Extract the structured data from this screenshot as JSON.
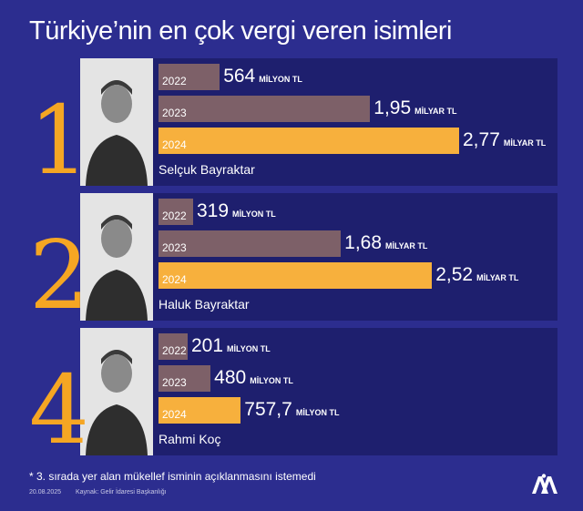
{
  "title": "Türkiye’nin en çok vergi veren isimleri",
  "chart_data": {
    "type": "bar",
    "categories": [
      "2022",
      "2023",
      "2024"
    ],
    "persons": [
      {
        "rank": "1",
        "name": "Selçuk Bayraktar",
        "photo_icon": "portrait-selcuk-bayraktar",
        "values_million_tl": [
          564,
          1950,
          2770
        ],
        "labels": [
          {
            "num": "564",
            "unit": "MİLYON TL"
          },
          {
            "num": "1,95",
            "unit": "MİLYAR TL"
          },
          {
            "num": "2,77",
            "unit": "MİLYAR TL"
          }
        ]
      },
      {
        "rank": "2",
        "name": "Haluk Bayraktar",
        "photo_icon": "portrait-haluk-bayraktar",
        "values_million_tl": [
          319,
          1680,
          2520
        ],
        "labels": [
          {
            "num": "319",
            "unit": "MİLYON TL"
          },
          {
            "num": "1,68",
            "unit": "MİLYAR TL"
          },
          {
            "num": "2,52",
            "unit": "MİLYAR TL"
          }
        ]
      },
      {
        "rank": "4",
        "name": "Rahmi Koç",
        "photo_icon": "portrait-rahmi-koc",
        "values_million_tl": [
          201,
          480,
          757.7
        ],
        "labels": [
          {
            "num": "201",
            "unit": "MİLYON TL"
          },
          {
            "num": "480",
            "unit": "MİLYON TL"
          },
          {
            "num": "757,7",
            "unit": "MİLYON TL"
          }
        ]
      }
    ]
  },
  "footnote": "*  3. sırada yer alan mükellef isminin açıklanmasını istemedi",
  "date": "20.08.2025",
  "source": "Kaynak: Gelir İdaresi Başkanlığı",
  "colors": {
    "background": "#2c2d8f",
    "panel": "#1e1f6e",
    "bar_past": "#7d6068",
    "bar_current": "#f7b03d",
    "rank": "#f5a623"
  },
  "logo_icon": "aa-logo-icon"
}
